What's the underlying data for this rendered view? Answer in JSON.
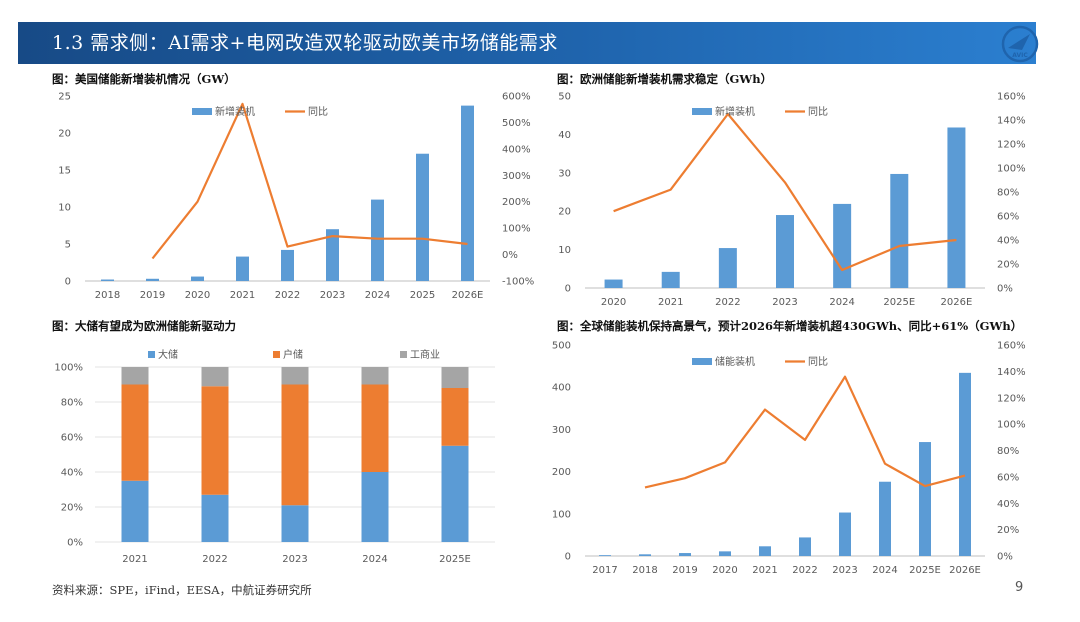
{
  "header": {
    "title": "1.3 需求侧：AI需求+电网改造双轮驱动欧美市场储能需求"
  },
  "logo": {
    "text": "AVIC",
    "icon": "avic-plane-logo"
  },
  "captions": {
    "c1": "图：美国储能新增装机情况（GW）",
    "c2": "图：欧洲储能新增装机需求稳定（GWh）",
    "c3": "图：大储有望成为欧洲储能新驱动力",
    "c4": "图：全球储能装机保持高景气，预计2026年新增装机超430GWh、同比+61%（GWh）"
  },
  "footer": {
    "source": "资料来源：SPE，iFind，EESA，中航证券研究所",
    "page": "9"
  },
  "colors": {
    "blue": "#5b9bd5",
    "orange": "#ed7d31",
    "gray": "#a5a5a5",
    "header": "#1f64ad"
  },
  "chart_data": [
    {
      "type": "bar+line",
      "title": "图：美国储能新增装机情况（GW）",
      "categories": [
        "2018",
        "2019",
        "2020",
        "2021",
        "2022",
        "2023",
        "2024",
        "2025",
        "2026E"
      ],
      "series": [
        {
          "name": "新增装机",
          "kind": "bar",
          "axis": "left",
          "values": [
            0.2,
            0.3,
            0.6,
            3.3,
            4.2,
            7.0,
            11.0,
            17.2,
            23.7
          ]
        },
        {
          "name": "同比",
          "kind": "line",
          "axis": "right",
          "values": [
            null,
            -15,
            200,
            570,
            30,
            70,
            60,
            60,
            40
          ]
        }
      ],
      "left_axis": {
        "min": 0,
        "max": 25,
        "ticks": [
          "0",
          "5",
          "10",
          "15",
          "20",
          "25"
        ]
      },
      "right_axis": {
        "min": -100,
        "max": 600,
        "ticks": [
          "-100%",
          "0%",
          "100%",
          "200%",
          "300%",
          "400%",
          "500%",
          "600%"
        ]
      },
      "legend": "top-center"
    },
    {
      "type": "bar+line",
      "title": "图：欧洲储能新增装机需求稳定（GWh）",
      "categories": [
        "2020",
        "2021",
        "2022",
        "2023",
        "2024",
        "2025E",
        "2026E"
      ],
      "series": [
        {
          "name": "新增装机",
          "kind": "bar",
          "axis": "left",
          "values": [
            2.2,
            4.2,
            10.4,
            19.0,
            21.9,
            29.7,
            41.8
          ]
        },
        {
          "name": "同比",
          "kind": "line",
          "axis": "right",
          "values": [
            64,
            82,
            145,
            88,
            15,
            35,
            40
          ]
        }
      ],
      "left_axis": {
        "min": 0,
        "max": 50,
        "ticks": [
          "0",
          "10",
          "20",
          "30",
          "40",
          "50"
        ]
      },
      "right_axis": {
        "min": 0,
        "max": 160,
        "ticks": [
          "0%",
          "20%",
          "40%",
          "60%",
          "80%",
          "100%",
          "120%",
          "140%",
          "160%"
        ]
      },
      "legend": "top-center"
    },
    {
      "type": "stacked-bar-100",
      "title": "图：大储有望成为欧洲储能新驱动力",
      "categories": [
        "2021",
        "2022",
        "2023",
        "2024",
        "2025E"
      ],
      "series": [
        {
          "name": "大储",
          "values": [
            35,
            27,
            21,
            40,
            55
          ]
        },
        {
          "name": "户储",
          "values": [
            55,
            62,
            69,
            50,
            33
          ]
        },
        {
          "name": "工商业",
          "values": [
            10,
            11,
            10,
            10,
            12
          ]
        }
      ],
      "y_axis": {
        "min": 0,
        "max": 100,
        "ticks": [
          "0%",
          "20%",
          "40%",
          "60%",
          "80%",
          "100%"
        ]
      },
      "legend": "top"
    },
    {
      "type": "bar+line",
      "title": "图：全球储能装机保持高景气，预计2026年新增装机超430GWh、同比+61%（GWh）",
      "categories": [
        "2017",
        "2018",
        "2019",
        "2020",
        "2021",
        "2022",
        "2023",
        "2024",
        "2025E",
        "2026E"
      ],
      "series": [
        {
          "name": "储能装机",
          "kind": "bar",
          "axis": "left",
          "values": [
            2,
            4,
            7,
            11,
            23,
            44,
            103,
            176,
            270,
            434
          ]
        },
        {
          "name": "同比",
          "kind": "line",
          "axis": "right",
          "values": [
            null,
            52,
            59,
            71,
            111,
            88,
            136,
            70,
            53,
            61
          ]
        }
      ],
      "left_axis": {
        "min": 0,
        "max": 500,
        "ticks": [
          "0",
          "100",
          "200",
          "300",
          "400",
          "500"
        ]
      },
      "right_axis": {
        "min": 0,
        "max": 160,
        "ticks": [
          "0%",
          "20%",
          "40%",
          "60%",
          "80%",
          "100%",
          "120%",
          "140%",
          "160%"
        ]
      },
      "legend": "top-center"
    }
  ]
}
